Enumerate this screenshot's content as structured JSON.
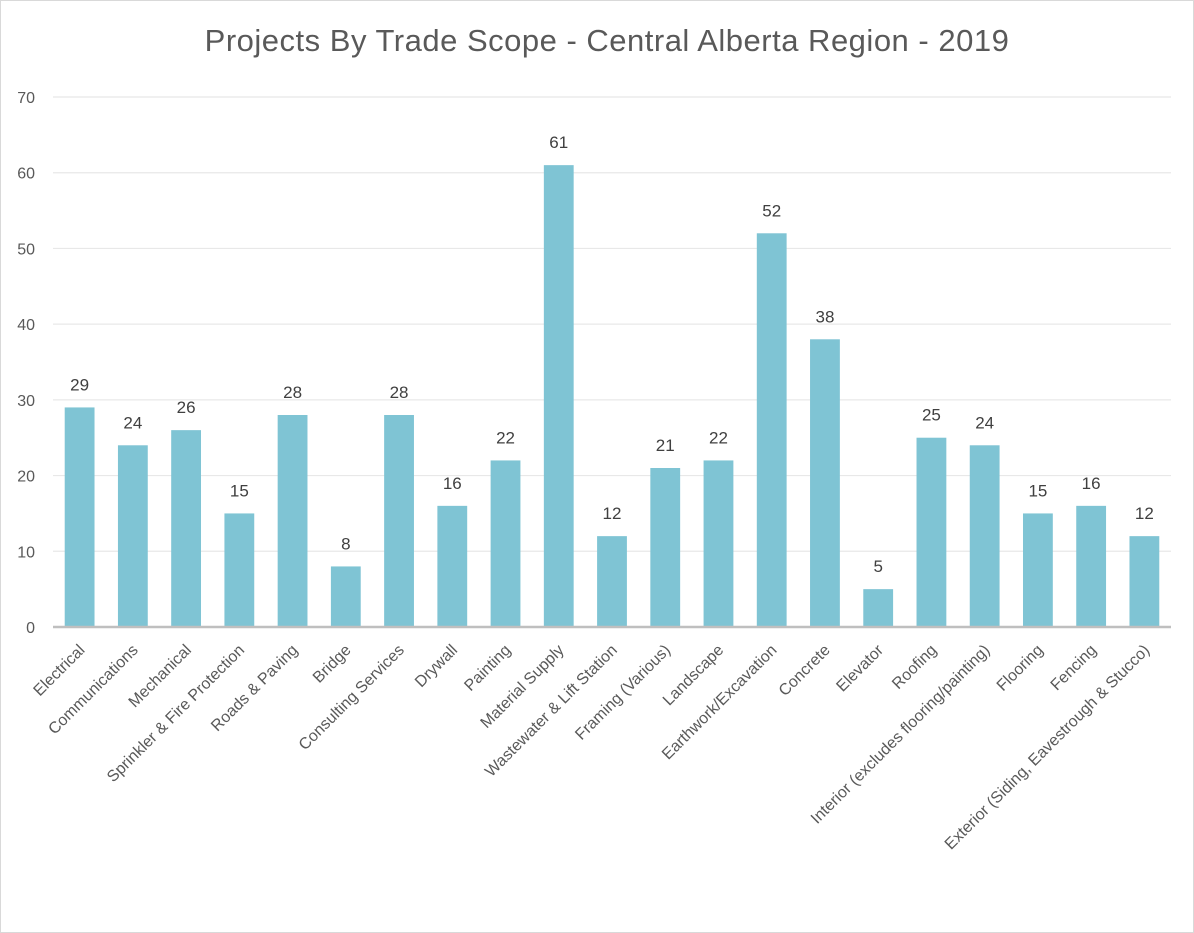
{
  "chart_data": {
    "type": "bar",
    "title": "Projects By Trade Scope - Central Alberta Region - 2019",
    "categories": [
      "Electrical",
      "Communications",
      "Mechanical",
      "Sprinkler & Fire Protection",
      "Roads & Paving",
      "Bridge",
      "Consulting Services",
      "Drywall",
      "Painting",
      "Material  Supply",
      "Wastewater  & Lift Station",
      "Framing (Various)",
      "Landscape",
      "Earthwork/Excavation",
      "Concrete",
      "Elevator",
      "Roofing",
      "Interior (excludes  flooring/painting)",
      "Flooring",
      "Fencing",
      "Exterior  (Siding, Eavestrough & Stucco)"
    ],
    "values": [
      29,
      24,
      26,
      15,
      28,
      8,
      28,
      16,
      22,
      61,
      12,
      21,
      22,
      52,
      38,
      5,
      25,
      24,
      15,
      16,
      12
    ],
    "ylim": [
      0,
      70
    ],
    "yticks": [
      0,
      10,
      20,
      30,
      40,
      50,
      60,
      70
    ],
    "xlabel": "",
    "ylabel": "",
    "grid": true,
    "data_labels": true,
    "bar_color": "#7fc4d4",
    "gridline_color": "#e8e8e8",
    "axis_color": "#bfbfbf"
  }
}
